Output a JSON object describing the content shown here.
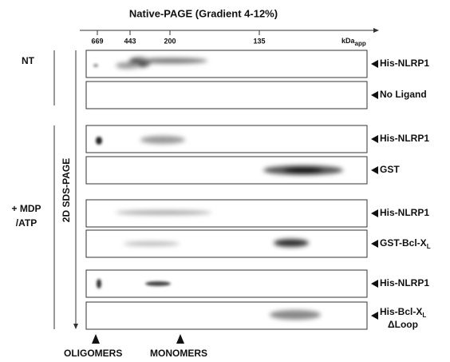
{
  "header": {
    "title": "Native-PAGE (Gradient 4-12%)"
  },
  "markers": [
    "669",
    "443",
    "200",
    "135"
  ],
  "unit": {
    "main": "kDa",
    "sub": "app"
  },
  "side_labels": {
    "nt": "NT",
    "treatment": [
      "+ MDP",
      "/ATP"
    ],
    "axis": "2D SDS-PAGE"
  },
  "rows": [
    {
      "label": "His-NLRP1"
    },
    {
      "label": "No Ligand"
    },
    {
      "label": "His-NLRP1"
    },
    {
      "label": "GST"
    },
    {
      "label": "His-NLRP1"
    },
    {
      "label": "GST-Bcl-X",
      "sub": "L"
    },
    {
      "label": "His-NLRP1"
    },
    {
      "label": "His-Bcl-X",
      "sub": "L",
      "line2": "ΔLoop"
    }
  ],
  "bottom": [
    "OLIGOMERS",
    "MONOMERS"
  ]
}
